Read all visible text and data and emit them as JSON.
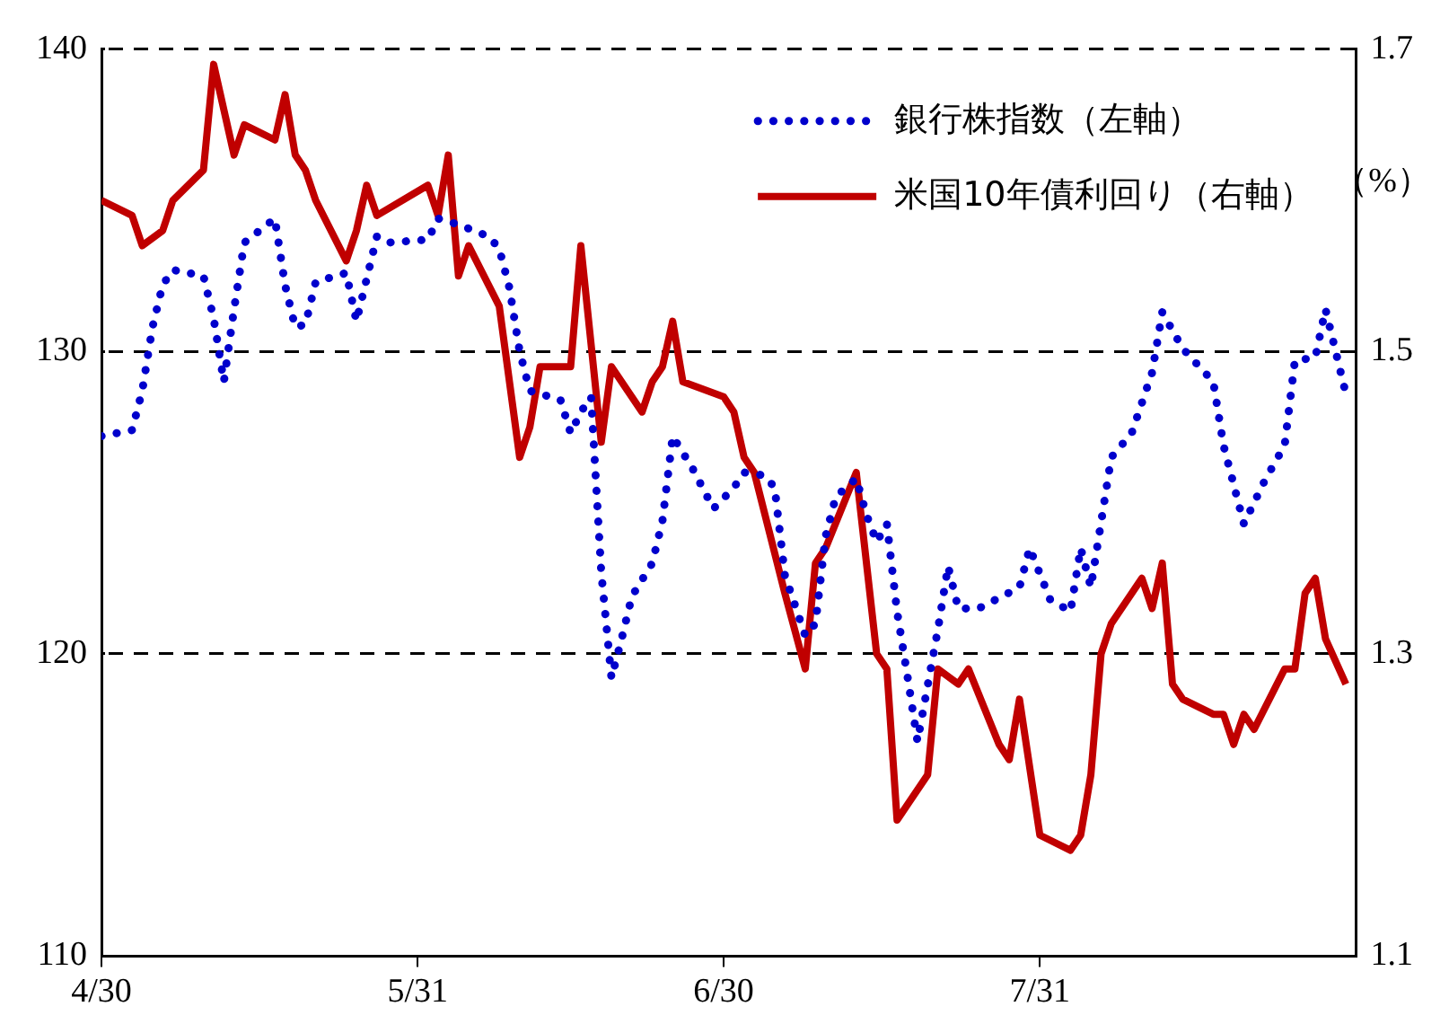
{
  "chart_data": {
    "type": "line",
    "y2label": "（%）",
    "xlim": [
      "--04-30",
      "--08-31"
    ],
    "xticks": [
      {
        "value": "--04-30",
        "label": "4/30"
      },
      {
        "value": "--05-31",
        "label": "5/31"
      },
      {
        "value": "--06-30",
        "label": "6/30"
      },
      {
        "value": "--07-31",
        "label": "7/31"
      }
    ],
    "ylim": [
      110,
      140
    ],
    "yticks": [
      110,
      120,
      130,
      140
    ],
    "y2lim": [
      1.1,
      1.7
    ],
    "y2ticks": [
      1.1,
      1.3,
      1.5,
      1.7
    ],
    "grid": "y",
    "legend": "top right",
    "series": [
      {
        "name": "銀行株指数（左軸）",
        "color": "#0000cc",
        "line_style": "dotted",
        "x": [
          "--04-30",
          "--05-03",
          "--05-04",
          "--05-05",
          "--05-06",
          "--05-07",
          "--05-10",
          "--05-11",
          "--05-12",
          "--05-13",
          "--05-14",
          "--05-17",
          "--05-18",
          "--05-19",
          "--05-20",
          "--05-21",
          "--05-24",
          "--05-25",
          "--05-26",
          "--05-27",
          "--05-28",
          "--06-01",
          "--06-02",
          "--06-04",
          "--06-07",
          "--06-08",
          "--06-09",
          "--06-10",
          "--06-11",
          "--06-14",
          "--06-15",
          "--06-16",
          "--06-17",
          "--06-18",
          "--06-19",
          "--06-20",
          "--06-21",
          "--06-23",
          "--06-24",
          "--06-25",
          "--06-27",
          "--06-29",
          "--07-01",
          "--07-02",
          "--07-04",
          "--07-05",
          "--07-06",
          "--07-08",
          "--07-09",
          "--07-10",
          "--07-11",
          "--07-13",
          "--07-14",
          "--07-15",
          "--07-16",
          "--07-17",
          "--07-18",
          "--07-19",
          "--07-21",
          "--07-22",
          "--07-23",
          "--07-25",
          "--07-29",
          "--07-30",
          "--08-01",
          "--08-03",
          "--08-04",
          "--08-05",
          "--08-07",
          "--08-09",
          "--08-11",
          "--08-12",
          "--08-14",
          "--08-17",
          "--08-18",
          "--08-20",
          "--08-22",
          "--08-24",
          "--08-25",
          "--08-27",
          "--08-28",
          "--08-29",
          "--08-30"
        ],
        "values": [
          127.2,
          127.4,
          128.7,
          130.8,
          132.2,
          132.7,
          132.5,
          131.1,
          129.0,
          131.4,
          133.6,
          134.4,
          132.2,
          130.8,
          130.9,
          132.3,
          132.6,
          131.0,
          132.4,
          133.8,
          133.6,
          133.7,
          134.4,
          134.2,
          133.8,
          133.4,
          132.1,
          130.0,
          128.7,
          128.4,
          127.3,
          128.0,
          128.5,
          122.7,
          119.2,
          120.5,
          121.9,
          123.0,
          124.4,
          127.2,
          126.1,
          124.8,
          125.5,
          126.0,
          125.9,
          125.5,
          122.6,
          120.6,
          121.0,
          123.9,
          125.2,
          125.8,
          124.6,
          123.7,
          124.3,
          121.4,
          119.3,
          117.1,
          120.8,
          122.9,
          121.5,
          121.5,
          122.2,
          123.5,
          121.8,
          121.4,
          123.5,
          122.2,
          126.5,
          127.3,
          129.3,
          131.3,
          130.1,
          129.0,
          126.9,
          124.3,
          125.7,
          126.9,
          129.7,
          129.8,
          131.4,
          130.0,
          128.6
        ]
      },
      {
        "name": "米国10年債利回り（右軸）",
        "color": "#c00000",
        "line_style": "solid",
        "axis": "y2",
        "x": [
          "--04-30",
          "--05-03",
          "--05-04",
          "--05-06",
          "--05-07",
          "--05-10",
          "--05-11",
          "--05-13",
          "--05-14",
          "--05-17",
          "--05-18",
          "--05-19",
          "--05-20",
          "--05-21",
          "--05-24",
          "--05-25",
          "--05-26",
          "--05-27",
          "--06-01",
          "--06-02",
          "--06-03",
          "--06-04",
          "--06-05",
          "--06-08",
          "--06-10",
          "--06-11",
          "--06-12",
          "--06-15",
          "--06-16",
          "--06-18",
          "--06-19",
          "--06-22",
          "--06-23",
          "--06-24",
          "--06-25",
          "--06-26",
          "--06-30",
          "--07-01",
          "--07-02",
          "--07-03",
          "--07-06",
          "--07-08",
          "--07-09",
          "--07-10",
          "--07-13",
          "--07-15",
          "--07-16",
          "--07-17",
          "--07-20",
          "--07-21",
          "--07-23",
          "--07-24",
          "--07-27",
          "--07-28",
          "--07-29",
          "--07-31",
          "--08-03",
          "--08-04",
          "--08-05",
          "--08-06",
          "--08-07",
          "--08-10",
          "--08-11",
          "--08-12",
          "--08-13",
          "--08-14",
          "--08-17",
          "--08-18",
          "--08-19",
          "--08-20",
          "--08-21",
          "--08-24",
          "--08-25",
          "--08-26",
          "--08-27",
          "--08-28",
          "--08-30"
        ],
        "values": [
          1.6,
          1.59,
          1.57,
          1.58,
          1.6,
          1.62,
          1.69,
          1.63,
          1.65,
          1.64,
          1.67,
          1.63,
          1.62,
          1.6,
          1.56,
          1.58,
          1.61,
          1.59,
          1.61,
          1.59,
          1.63,
          1.55,
          1.57,
          1.53,
          1.43,
          1.45,
          1.49,
          1.49,
          1.57,
          1.44,
          1.49,
          1.46,
          1.48,
          1.49,
          1.52,
          1.48,
          1.47,
          1.46,
          1.43,
          1.42,
          1.34,
          1.29,
          1.36,
          1.37,
          1.42,
          1.3,
          1.29,
          1.19,
          1.22,
          1.29,
          1.28,
          1.29,
          1.24,
          1.23,
          1.27,
          1.18,
          1.17,
          1.18,
          1.22,
          1.3,
          1.32,
          1.35,
          1.33,
          1.36,
          1.28,
          1.27,
          1.26,
          1.26,
          1.24,
          1.26,
          1.25,
          1.29,
          1.29,
          1.34,
          1.35,
          1.31,
          1.28
        ]
      }
    ]
  }
}
